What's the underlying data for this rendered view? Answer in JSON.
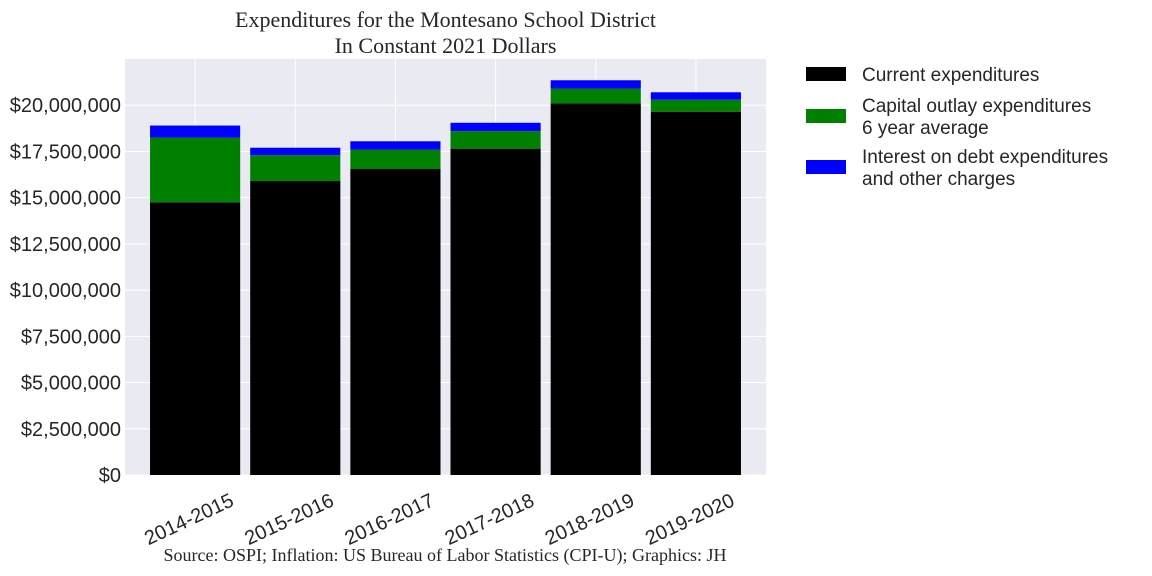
{
  "chart_data": {
    "type": "bar",
    "stacked": true,
    "title_lines": [
      "Expenditures for the Montesano School District",
      "In Constant 2021 Dollars"
    ],
    "source_note": "Source: OSPI; Inflation: US Bureau of Labor Statistics (CPI-U); Graphics: JH",
    "categories": [
      "2014-2015",
      "2015-2016",
      "2016-2017",
      "2017-2018",
      "2018-2019",
      "2019-2020"
    ],
    "series": [
      {
        "name": "Current expenditures",
        "label_lines": [
          "Current expenditures"
        ],
        "color": "#000000",
        "values": [
          14750000,
          15900000,
          16550000,
          17650000,
          20100000,
          19650000
        ]
      },
      {
        "name": "Capital outlay expenditures 6 year average",
        "label_lines": [
          "Capital outlay expenditures",
          "6 year average"
        ],
        "color": "#008000",
        "values": [
          3500000,
          1400000,
          1050000,
          950000,
          800000,
          650000
        ]
      },
      {
        "name": "Interest on debt expenditures and other charges",
        "label_lines": [
          "Interest on debt expenditures",
          "and other charges"
        ],
        "color": "#0000ff",
        "values": [
          650000,
          400000,
          450000,
          450000,
          450000,
          400000
        ]
      }
    ],
    "ylim": [
      0,
      22500000
    ],
    "yticks": [
      0,
      2500000,
      5000000,
      7500000,
      10000000,
      12500000,
      15000000,
      17500000,
      20000000
    ],
    "ytick_labels": [
      "$0",
      "$2,500,000",
      "$5,000,000",
      "$7,500,000",
      "$10,000,000",
      "$12,500,000",
      "$15,000,000",
      "$17,500,000",
      "$20,000,000"
    ],
    "xlabel": "",
    "ylabel": "",
    "grid": true,
    "legend_position": "outside-right-top",
    "plot_background": "#eaeaf2",
    "grid_color": "#ffffff"
  }
}
